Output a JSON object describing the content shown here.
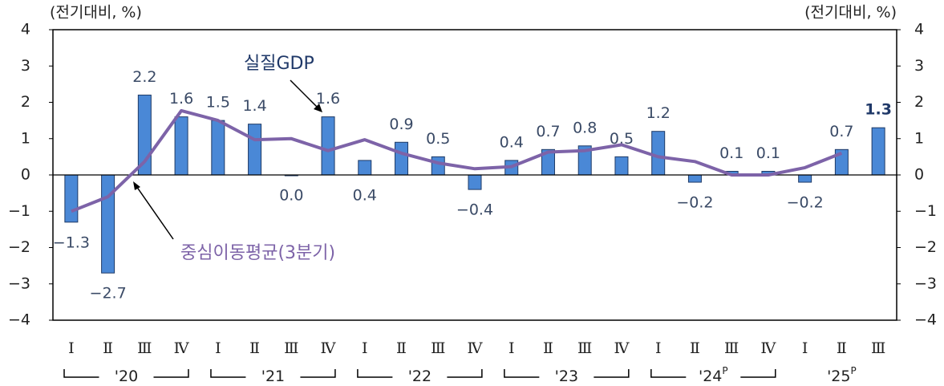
{
  "chart_data": {
    "type": "bar+line",
    "y_label": "(전기대비, %)",
    "y2_label": "(전기대비, %)",
    "categories": [
      "Ⅰ",
      "Ⅱ",
      "Ⅲ",
      "Ⅳ",
      "Ⅰ",
      "Ⅱ",
      "Ⅲ",
      "Ⅳ",
      "Ⅰ",
      "Ⅱ",
      "Ⅲ",
      "Ⅳ",
      "Ⅰ",
      "Ⅱ",
      "Ⅲ",
      "Ⅳ",
      "Ⅰ",
      "Ⅱ",
      "Ⅲ",
      "Ⅳ",
      "Ⅰ",
      "Ⅱ",
      "Ⅲ"
    ],
    "year_groups": [
      {
        "label": "'20"
      },
      {
        "label": "'21"
      },
      {
        "label": "'22"
      },
      {
        "label": "'23"
      },
      {
        "label": "'24",
        "sup": "P"
      },
      {
        "label": "'25",
        "sup": "P"
      }
    ],
    "series": [
      {
        "name": "실질GDP",
        "type": "bar",
        "color": "#4a88d6",
        "values": [
          -1.3,
          -2.7,
          2.2,
          1.6,
          1.5,
          1.4,
          0.0,
          1.6,
          0.4,
          0.9,
          0.5,
          -0.4,
          0.4,
          0.7,
          0.8,
          0.5,
          1.2,
          -0.2,
          0.1,
          0.1,
          -0.2,
          0.7,
          1.3
        ],
        "value_labels": [
          "−1.3",
          "−2.7",
          "2.2",
          "1.6",
          "1.5",
          "1.4",
          "0.0",
          "1.6",
          "0.4",
          "0.9",
          "0.5",
          "−0.4",
          "0.4",
          "0.7",
          "0.8",
          "0.5",
          "1.2",
          "−0.2",
          "0.1",
          "0.1",
          "−0.2",
          "0.7",
          "1.3"
        ]
      },
      {
        "name": "중심이동평균(3분기)",
        "type": "line",
        "color": "#7d63a8",
        "values": [
          -1.0,
          -0.6,
          0.37,
          1.77,
          1.5,
          0.97,
          1.0,
          0.67,
          0.97,
          0.6,
          0.33,
          0.17,
          0.23,
          0.63,
          0.67,
          0.83,
          0.5,
          0.37,
          0.0,
          0.0,
          0.2,
          0.6,
          null
        ]
      }
    ],
    "ylim": [
      -4,
      4
    ],
    "yticks": [
      {
        "value": -4,
        "label": "−4"
      },
      {
        "value": -3,
        "label": "−3"
      },
      {
        "value": -2,
        "label": "−2"
      },
      {
        "value": -1,
        "label": "−1"
      },
      0,
      1,
      2,
      3,
      4
    ],
    "y2lim": [
      -4,
      4
    ],
    "y2ticks": [
      {
        "value": -4,
        "label": "−4"
      },
      {
        "value": -3,
        "label": "−3"
      },
      {
        "value": -2,
        "label": "−2"
      },
      {
        "value": -1,
        "label": "−1"
      },
      0,
      1,
      2,
      3,
      4
    ]
  }
}
